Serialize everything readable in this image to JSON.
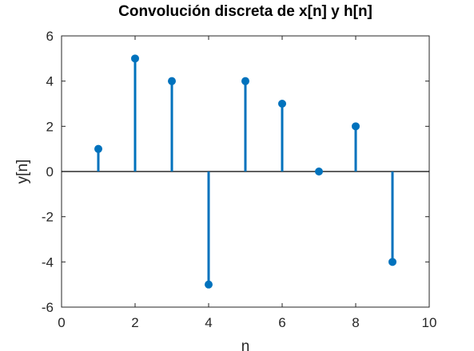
{
  "chart_data": {
    "type": "stem",
    "title": "Convolución discreta de x[n] y h[n]",
    "xlabel": "n",
    "ylabel": "y[n]",
    "xlim": [
      0,
      10
    ],
    "ylim": [
      -6,
      6
    ],
    "xticks": [
      0,
      2,
      4,
      6,
      8,
      10
    ],
    "yticks": [
      -6,
      -4,
      -2,
      0,
      2,
      4,
      6
    ],
    "grid": false,
    "baseline": 0,
    "series": [
      {
        "x": [
          1,
          2,
          3,
          4,
          5,
          6,
          7,
          8,
          9
        ],
        "values": [
          1,
          5,
          4,
          -5,
          4,
          3,
          0,
          2,
          -4
        ],
        "color": "#0072BD"
      }
    ]
  }
}
